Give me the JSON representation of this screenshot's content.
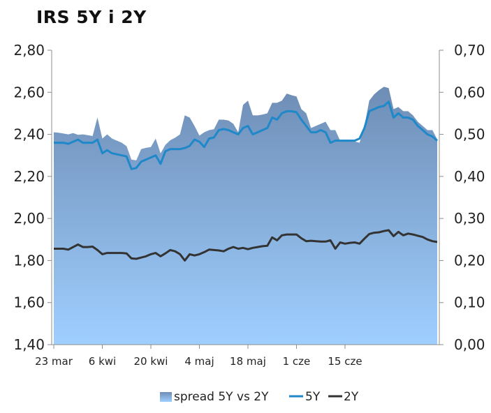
{
  "chart_data": {
    "type": "area+line",
    "title": "IRS 5Y i 2Y",
    "y_left": {
      "ylim": [
        1.4,
        2.8
      ],
      "ticks": [
        "1,40",
        "1,60",
        "1,80",
        "2,00",
        "2,20",
        "2,40",
        "2,60",
        "2,80"
      ]
    },
    "y_right": {
      "ylim": [
        0.0,
        0.7
      ],
      "ticks": [
        "0,00",
        "0,10",
        "0,20",
        "0,30",
        "0,40",
        "0,50",
        "0,60",
        "0,70"
      ]
    },
    "x_ticks": [
      "23 mar",
      "6 kwi",
      "20 kwi",
      "4 maj",
      "18 maj",
      "1 cze",
      "15 cze"
    ],
    "x_tick_index": [
      0,
      10,
      20,
      30,
      40,
      50,
      60
    ],
    "legend": {
      "position": "bottom",
      "entries": [
        "spread 5Y vs 2Y",
        "5Y",
        "2Y"
      ]
    },
    "colors": {
      "spread_fill_top": "#6e8db5",
      "spread_fill_bottom": "#9fcfff",
      "line_5y": "#1e88c8",
      "line_2y": "#333333",
      "axis": "#8c8c8c"
    },
    "series": [
      {
        "name": "5Y",
        "axis": "left",
        "values": [
          2.36,
          2.36,
          2.36,
          2.355,
          2.365,
          2.375,
          2.36,
          2.36,
          2.36,
          2.375,
          2.31,
          2.325,
          2.31,
          2.305,
          2.3,
          2.295,
          2.235,
          2.24,
          2.27,
          2.28,
          2.29,
          2.3,
          2.26,
          2.32,
          2.33,
          2.33,
          2.33,
          2.335,
          2.345,
          2.375,
          2.365,
          2.34,
          2.38,
          2.385,
          2.42,
          2.425,
          2.42,
          2.41,
          2.4,
          2.43,
          2.44,
          2.4,
          2.41,
          2.42,
          2.43,
          2.48,
          2.47,
          2.5,
          2.51,
          2.51,
          2.505,
          2.47,
          2.44,
          2.41,
          2.41,
          2.42,
          2.41,
          2.36,
          2.37,
          2.37,
          2.37,
          2.37,
          2.37,
          2.38,
          2.43,
          2.51,
          2.52,
          2.53,
          2.535,
          2.555,
          2.48,
          2.5,
          2.48,
          2.48,
          2.47,
          2.44,
          2.42,
          2.4,
          2.39,
          2.37
        ]
      },
      {
        "name": "2Y",
        "axis": "right",
        "values": [
          0.228,
          0.228,
          0.228,
          0.226,
          0.232,
          0.238,
          0.232,
          0.232,
          0.233,
          0.225,
          0.215,
          0.218,
          0.218,
          0.218,
          0.218,
          0.217,
          0.205,
          0.204,
          0.207,
          0.21,
          0.215,
          0.218,
          0.21,
          0.217,
          0.225,
          0.222,
          0.215,
          0.2,
          0.215,
          0.212,
          0.215,
          0.22,
          0.226,
          0.225,
          0.224,
          0.222,
          0.228,
          0.232,
          0.228,
          0.23,
          0.227,
          0.23,
          0.232,
          0.234,
          0.235,
          0.255,
          0.248,
          0.26,
          0.262,
          0.262,
          0.262,
          0.253,
          0.246,
          0.247,
          0.246,
          0.245,
          0.245,
          0.248,
          0.228,
          0.243,
          0.24,
          0.242,
          0.243,
          0.24,
          0.252,
          0.263,
          0.266,
          0.267,
          0.27,
          0.272,
          0.258,
          0.268,
          0.26,
          0.264,
          0.262,
          0.259,
          0.256,
          0.25,
          0.246,
          0.244
        ]
      },
      {
        "name": "spread 5Y vs 2Y",
        "axis": "right",
        "values": [
          0.505,
          0.504,
          0.502,
          0.5,
          0.503,
          0.499,
          0.5,
          0.498,
          0.496,
          0.54,
          0.49,
          0.5,
          0.49,
          0.485,
          0.48,
          0.472,
          0.44,
          0.438,
          0.465,
          0.468,
          0.47,
          0.49,
          0.455,
          0.475,
          0.486,
          0.492,
          0.5,
          0.545,
          0.54,
          0.52,
          0.497,
          0.505,
          0.51,
          0.512,
          0.535,
          0.535,
          0.533,
          0.525,
          0.505,
          0.57,
          0.58,
          0.545,
          0.545,
          0.547,
          0.55,
          0.575,
          0.575,
          0.58,
          0.597,
          0.593,
          0.59,
          0.56,
          0.55,
          0.515,
          0.52,
          0.525,
          0.53,
          0.51,
          0.51,
          0.485,
          0.485,
          0.485,
          0.483,
          0.48,
          0.52,
          0.58,
          0.595,
          0.605,
          0.613,
          0.61,
          0.56,
          0.565,
          0.555,
          0.555,
          0.545,
          0.53,
          0.52,
          0.51,
          0.51,
          0.488
        ]
      }
    ]
  }
}
